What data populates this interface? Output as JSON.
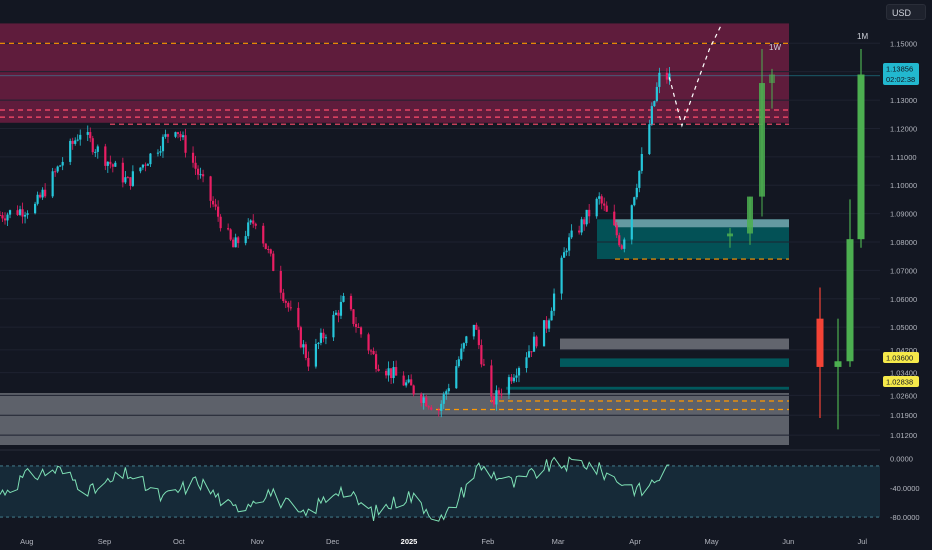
{
  "currency_button": "USD",
  "timeframe_labels": {
    "weekly": "1W",
    "monthly": "1M"
  },
  "axis": {
    "price_ticks": [
      "1.15000",
      "1.14000",
      "1.13000",
      "1.12000",
      "1.11000",
      "1.10000",
      "1.09000",
      "1.08000",
      "1.07000",
      "1.06000",
      "1.05000",
      "1.04200",
      "1.03400",
      "1.02600",
      "1.01900",
      "1.01200"
    ],
    "rsi_ticks": [
      "0.0000",
      "-40.0000",
      "-80.0000"
    ],
    "time_ticks": [
      "Aug",
      "Sep",
      "Oct",
      "Nov",
      "Dec",
      "2025",
      "Feb",
      "Mar",
      "Apr",
      "May",
      "Jun",
      "Jul"
    ]
  },
  "price_labels": [
    {
      "value": "1.13856",
      "sub": "02:02:38",
      "color": "#22b8cf",
      "text_color": "#131722"
    },
    {
      "value": "1.03600",
      "color": "#f5e94a",
      "text_color": "#131722"
    },
    {
      "value": "1.02838",
      "color": "#f5e94a",
      "text_color": "#131722"
    }
  ],
  "colors": {
    "background": "#131722",
    "up": "#26c6da",
    "down": "#e91e63",
    "weekly_up": "#4caf50",
    "weekly_down": "#f44336",
    "supply_zone": "#7a1f45",
    "demand_zone": "#006064",
    "gray_zone": "#6b6e77",
    "level_line": "#ff9800",
    "rsi_line": "#7ee0b5"
  },
  "chart_data": {
    "type": "candlestick",
    "x_range": [
      "2024-07-22",
      "2025-07-08"
    ],
    "y_range": [
      1.0085,
      1.1575
    ],
    "daily_key_points": [
      [
        "2024-07-22",
        1.0895
      ],
      [
        "2024-08-05",
        1.0925
      ],
      [
        "2024-08-23",
        1.119
      ],
      [
        "2024-09-11",
        1.101
      ],
      [
        "2024-09-30",
        1.121
      ],
      [
        "2024-10-23",
        1.078
      ],
      [
        "2024-11-01",
        1.088
      ],
      [
        "2024-11-22",
        1.038
      ],
      [
        "2024-12-06",
        1.059
      ],
      [
        "2024-12-19",
        1.038
      ],
      [
        "2025-01-13",
        1.021
      ],
      [
        "2025-01-27",
        1.052
      ],
      [
        "2025-02-03",
        1.023
      ],
      [
        "2025-02-25",
        1.051
      ],
      [
        "2025-03-05",
        1.079
      ],
      [
        "2025-03-18",
        1.095
      ],
      [
        "2025-03-27",
        1.079
      ],
      [
        "2025-04-03",
        1.105
      ],
      [
        "2025-04-11",
        1.138
      ],
      [
        "2025-04-15",
        1.138
      ]
    ],
    "weekly_candles": [
      {
        "week": "2025-03-24",
        "open": 1.082,
        "high": 1.085,
        "low": 1.078,
        "close": 1.083
      },
      {
        "week": "2025-03-31",
        "open": 1.083,
        "high": 1.096,
        "low": 1.079,
        "close": 1.096
      },
      {
        "week": "2025-04-07",
        "open": 1.096,
        "high": 1.148,
        "low": 1.089,
        "close": 1.136
      },
      {
        "week": "2025-04-14",
        "open": 1.136,
        "high": 1.141,
        "low": 1.127,
        "close": 1.139
      }
    ],
    "monthly_candles": [
      {
        "month": "2025-01",
        "open": 1.053,
        "high": 1.064,
        "low": 1.018,
        "close": 1.036
      },
      {
        "month": "2025-02",
        "open": 1.036,
        "high": 1.053,
        "low": 1.014,
        "close": 1.038
      },
      {
        "month": "2025-03",
        "open": 1.038,
        "high": 1.095,
        "low": 1.036,
        "close": 1.081
      },
      {
        "month": "2025-04",
        "open": 1.081,
        "high": 1.148,
        "low": 1.078,
        "close": 1.139
      }
    ],
    "zones": [
      {
        "kind": "supply",
        "top": 1.157,
        "bottom": 1.122
      },
      {
        "kind": "demand",
        "top": 1.088,
        "bottom": 1.074
      },
      {
        "kind": "demand-small",
        "top": 1.039,
        "bottom": 1.036
      },
      {
        "kind": "demand-small",
        "top": 1.029,
        "bottom": 1.028
      },
      {
        "kind": "gray",
        "top": 1.046,
        "bottom": 1.042
      },
      {
        "kind": "gray-large",
        "top": 1.0268,
        "bottom": 1.0085
      }
    ],
    "dashed_levels": [
      1.15,
      1.1265,
      1.124,
      1.1215,
      1.074,
      1.024,
      1.021
    ],
    "projection_path": [
      [
        "2025-04-15",
        1.138
      ],
      [
        "2025-04-20",
        1.121
      ],
      [
        "2025-04-26",
        1.136
      ],
      [
        "2025-05-01",
        1.148
      ],
      [
        "2025-05-06",
        1.157
      ]
    ],
    "rsi": {
      "range": [
        -95,
        5
      ],
      "key_points": [
        [
          "2024-07-22",
          -48
        ],
        [
          "2024-08-01",
          -25
        ],
        [
          "2024-08-14",
          -15
        ],
        [
          "2024-08-28",
          -45
        ],
        [
          "2024-09-11",
          -20
        ],
        [
          "2024-09-25",
          -55
        ],
        [
          "2024-10-09",
          -30
        ],
        [
          "2024-10-23",
          -70
        ],
        [
          "2024-11-06",
          -45
        ],
        [
          "2024-11-20",
          -80
        ],
        [
          "2024-12-04",
          -40
        ],
        [
          "2024-12-18",
          -75
        ],
        [
          "2025-01-01",
          -50
        ],
        [
          "2025-01-15",
          -85
        ],
        [
          "2025-01-29",
          -10
        ],
        [
          "2025-02-12",
          -35
        ],
        [
          "2025-02-26",
          -10
        ],
        [
          "2025-03-12",
          -5
        ],
        [
          "2025-03-26",
          -30
        ],
        [
          "2025-04-04",
          -45
        ],
        [
          "2025-04-15",
          -12
        ]
      ]
    }
  }
}
